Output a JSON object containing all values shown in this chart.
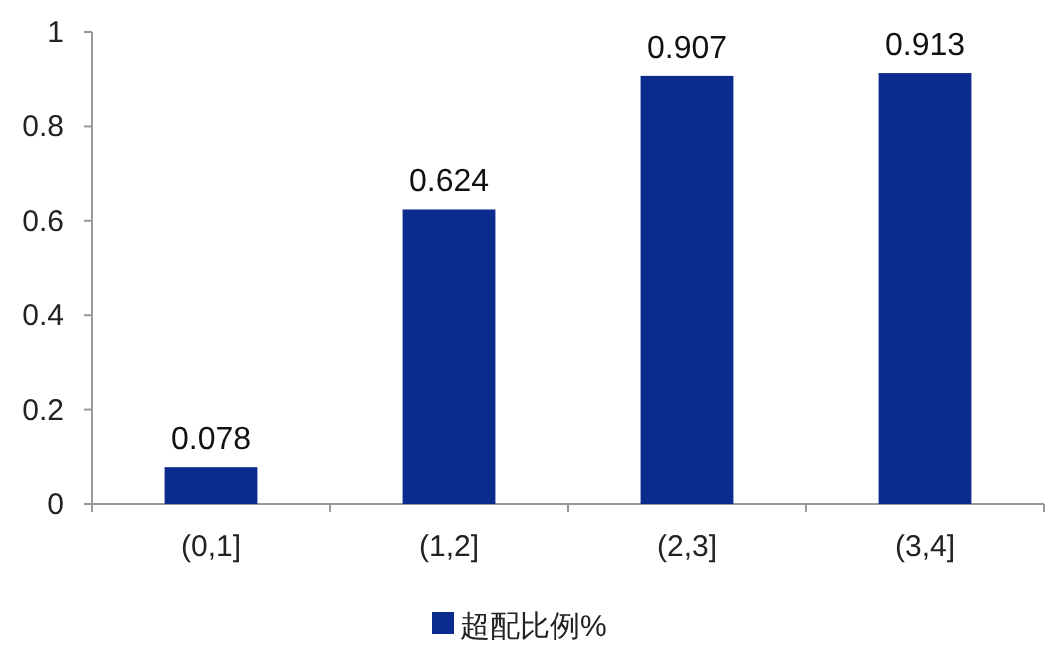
{
  "chart_data": {
    "type": "bar",
    "categories": [
      "(0,1]",
      "(1,2]",
      "(2,3]",
      "(3,4]"
    ],
    "series": [
      {
        "name": "超配比例%",
        "color": "#0c2b8e",
        "values": [
          0.078,
          0.624,
          0.907,
          0.913
        ]
      }
    ],
    "ylim": [
      0,
      1
    ],
    "yticks": [
      0,
      0.2,
      0.4,
      0.6,
      0.8,
      1
    ],
    "data_labels": true,
    "legend": "bottom",
    "grid": false
  }
}
